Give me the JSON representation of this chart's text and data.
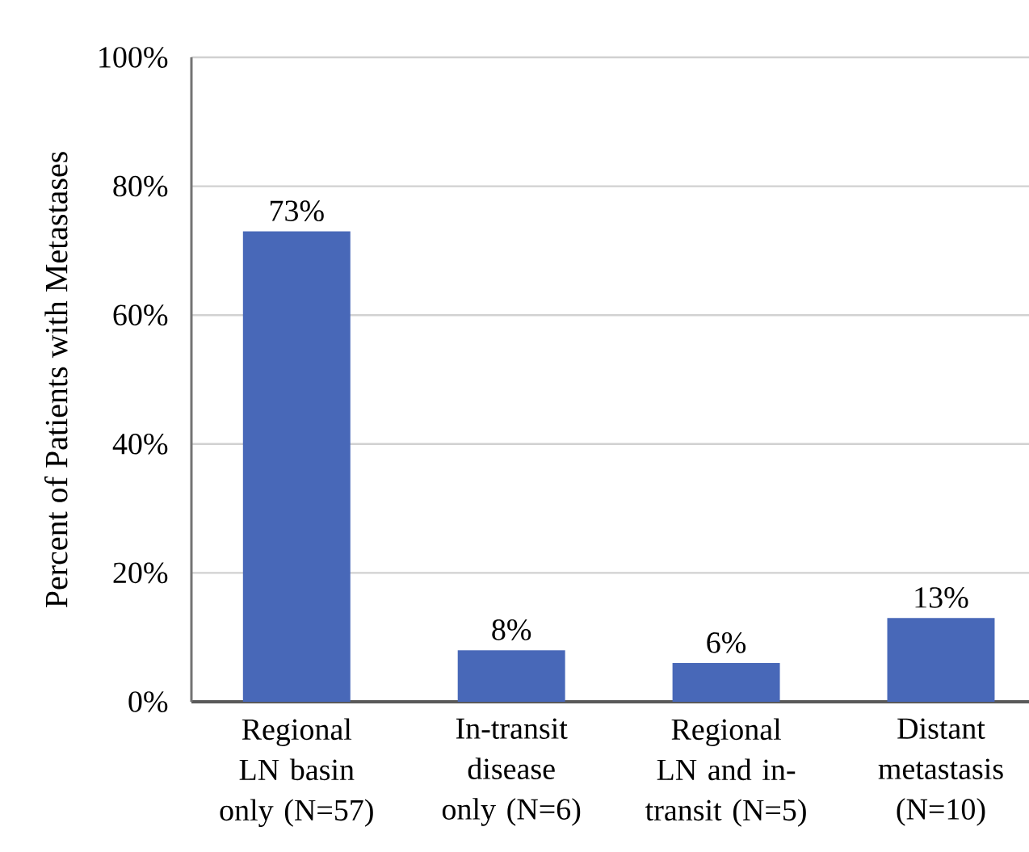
{
  "chart_data": {
    "type": "bar",
    "ylabel": "Percent of Patients with Metastases",
    "categories": [
      "Regional LN basin only (N=57)",
      "In-transit disease only (N=6)",
      "Regional LN and in-transit (N=5)",
      "Distant metastasis (N=10)"
    ],
    "values": [
      73,
      8,
      6,
      13
    ],
    "value_labels": [
      "73%",
      "8%",
      "6%",
      "13%"
    ],
    "color": "#4868b8",
    "ylim": [
      0,
      100
    ],
    "yticks": [
      {
        "value": 0,
        "label": "0%"
      },
      {
        "value": 20,
        "label": "20%"
      },
      {
        "value": 40,
        "label": "40%"
      },
      {
        "value": 60,
        "label": "60%"
      },
      {
        "value": 80,
        "label": "80%"
      },
      {
        "value": 100,
        "label": "100%"
      }
    ],
    "grid": "y"
  }
}
